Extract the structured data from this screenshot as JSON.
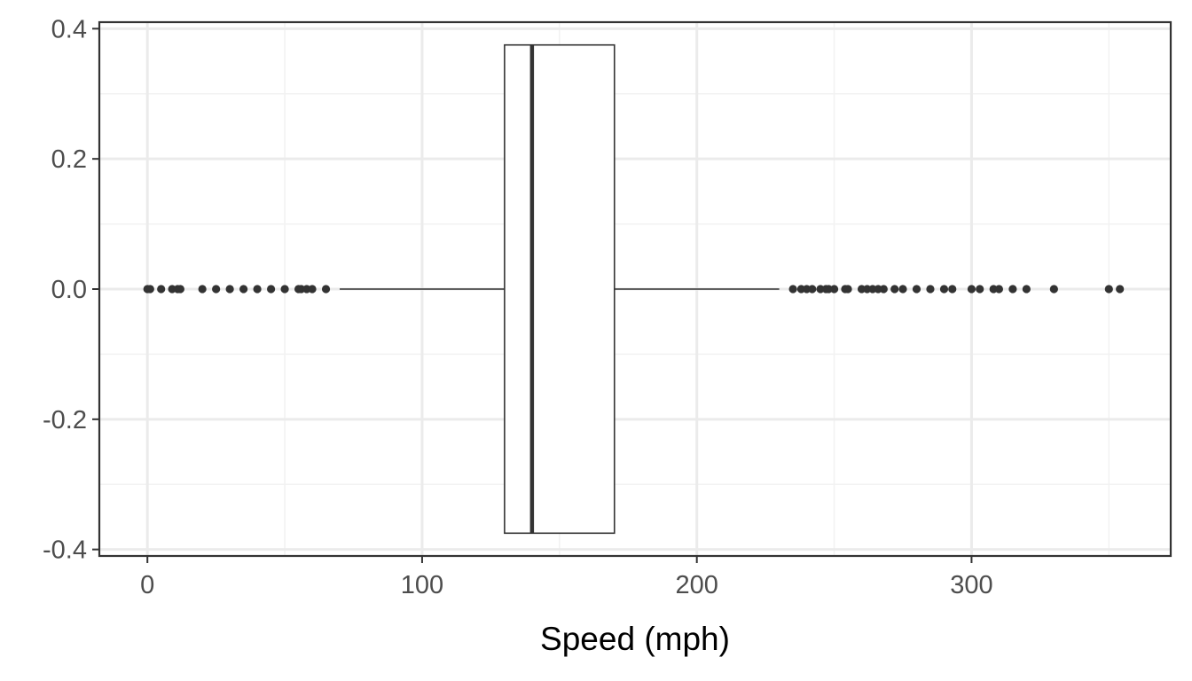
{
  "chart_data": {
    "type": "boxplot",
    "orientation": "horizontal",
    "xlabel": "Speed (mph)",
    "ylabel": "",
    "xlim": [
      -17.5,
      372.5
    ],
    "ylim": [
      -0.41,
      0.41
    ],
    "x_ticks": [
      0,
      100,
      200,
      300
    ],
    "y_ticks": [
      -0.4,
      -0.2,
      0.0,
      0.2,
      0.4
    ],
    "x_tick_labels": [
      "0",
      "100",
      "200",
      "300"
    ],
    "y_tick_labels": [
      "-0.4",
      "-0.2",
      "0.0",
      "0.2",
      "0.4"
    ],
    "x_minor_ticks": [
      50,
      150,
      250,
      350
    ],
    "y_minor_ticks": [
      -0.3,
      -0.1,
      0.1,
      0.3
    ],
    "grid": true,
    "box": {
      "y_center": 0.0,
      "half_height": 0.375,
      "q1": 130,
      "median": 140,
      "q3": 170,
      "whisker_low": 70,
      "whisker_high": 230
    },
    "outliers": [
      0,
      1,
      5,
      9,
      11,
      12,
      20,
      25,
      30,
      35,
      40,
      45,
      50,
      55,
      56,
      58,
      60,
      65,
      235,
      238,
      240,
      242,
      245,
      247,
      248,
      250,
      254,
      255,
      260,
      262,
      264,
      266,
      268,
      272,
      275,
      280,
      285,
      290,
      293,
      300,
      303,
      308,
      310,
      315,
      320,
      330,
      350,
      354
    ],
    "colors": {
      "background": "#ffffff",
      "panel_border": "#333333",
      "grid_major": "#ebebeb",
      "grid_minor": "#f2f2f2",
      "box_fill": "#ffffff",
      "box_stroke": "#333333",
      "points": "#333333"
    }
  }
}
